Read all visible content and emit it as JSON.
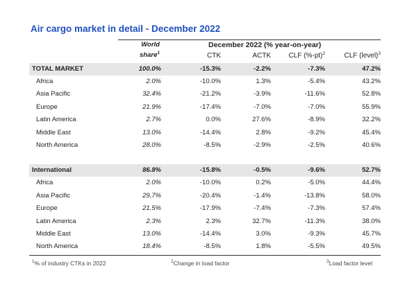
{
  "title": "Air cargo market in detail - December 2022",
  "header": {
    "share_line1": "World",
    "share_line2": "share",
    "share_sup": "1",
    "group": "December 2022 (% year-on-year)",
    "columns": [
      {
        "text": "CTK"
      },
      {
        "text": "ACTK"
      },
      {
        "text": "CLF (%-pt)",
        "sup": "2"
      },
      {
        "text": "CLF (level)",
        "sup": "3"
      }
    ]
  },
  "table": {
    "sections": [
      {
        "total": [
          "TOTAL MARKET",
          "100.0%",
          "-15.3%",
          "-2.2%",
          "-7.3%",
          "47.2%"
        ],
        "rows": [
          [
            "Africa",
            "2.0%",
            "-10.0%",
            "1.3%",
            "-5.4%",
            "43.2%"
          ],
          [
            "Asia Pacific",
            "32.4%",
            "-21.2%",
            "-3.9%",
            "-11.6%",
            "52.8%"
          ],
          [
            "Europe",
            "21.9%",
            "-17.4%",
            "-7.0%",
            "-7.0%",
            "55.9%"
          ],
          [
            "Latin America",
            "2.7%",
            "0.0%",
            "27.6%",
            "-8.9%",
            "32.2%"
          ],
          [
            "Middle East",
            "13.0%",
            "-14.4%",
            "2.8%",
            "-9.2%",
            "45.4%"
          ],
          [
            "North America",
            "28.0%",
            "-8.5%",
            "-2.9%",
            "-2.5%",
            "40.6%"
          ]
        ]
      },
      {
        "total": [
          "International",
          "86.8%",
          "-15.8%",
          "-0.5%",
          "-9.6%",
          "52.7%"
        ],
        "rows": [
          [
            "Africa",
            "2.0%",
            "-10.0%",
            "0.2%",
            "-5.0%",
            "44.4%"
          ],
          [
            "Asia Pacific",
            "29.7%",
            "-20.4%",
            "-1.4%",
            "-13.8%",
            "58.0%"
          ],
          [
            "Europe",
            "21.5%",
            "-17.9%",
            "-7.4%",
            "-7.3%",
            "57.4%"
          ],
          [
            "Latin America",
            "2.3%",
            "2.3%",
            "32.7%",
            "-11.3%",
            "38.0%"
          ],
          [
            "Middle East",
            "13.0%",
            "-14.4%",
            "3.0%",
            "-9.3%",
            "45.7%"
          ],
          [
            "North America",
            "18.4%",
            "-8.5%",
            "1.8%",
            "-5.5%",
            "49.5%"
          ]
        ]
      }
    ]
  },
  "footnotes": [
    {
      "sup": "1",
      "text": "% of industry CTKs in 2022"
    },
    {
      "sup": "2",
      "text": "Change in load factor"
    },
    {
      "sup": "3",
      "text": "Load factor level"
    }
  ]
}
